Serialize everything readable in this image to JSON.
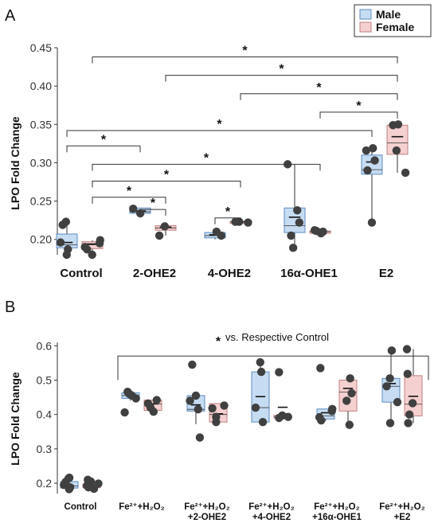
{
  "colors": {
    "male_fill": "#c6dcf2",
    "male_stroke": "#5c8cc0",
    "female_fill": "#f5d0d0",
    "female_stroke": "#c08080",
    "point": "#404040",
    "axis": "#333333"
  },
  "panels": {
    "a": {
      "label": "A"
    },
    "b": {
      "label": "B"
    }
  },
  "chart_data": [
    {
      "type": "box",
      "panel": "A",
      "ylabel": "LPO Fold Change",
      "ylim": [
        0.18,
        0.45
      ],
      "yticks": [
        "0.20",
        "0.25",
        "0.30",
        "0.35",
        "0.40",
        "0.45"
      ],
      "legend": {
        "position": "top-right",
        "entries": [
          "Male",
          "Female"
        ]
      },
      "categories": [
        "Control",
        "2-OHE2",
        "4-OHE2",
        "16α-OHE1",
        "E2"
      ],
      "series": [
        {
          "name": "Male",
          "boxes": [
            {
              "q1": 0.189,
              "median": 0.193,
              "mean": 0.196,
              "q3": 0.207,
              "whisker_low": 0.18,
              "whisker_high": 0.223,
              "points": [
                0.18,
                0.187,
                0.196,
                0.219,
                0.223
              ]
            },
            {
              "q1": 0.234,
              "median": 0.236,
              "mean": 0.237,
              "q3": 0.241,
              "whisker_low": 0.233,
              "whisker_high": 0.241,
              "points": [
                0.234,
                0.24
              ]
            },
            {
              "q1": 0.202,
              "median": 0.205,
              "mean": 0.206,
              "q3": 0.209,
              "whisker_low": 0.2,
              "whisker_high": 0.21,
              "points": [
                0.205,
                0.21
              ]
            },
            {
              "q1": 0.209,
              "median": 0.218,
              "mean": 0.229,
              "q3": 0.241,
              "whisker_low": 0.189,
              "whisker_high": 0.298,
              "points": [
                0.189,
                0.205,
                0.222,
                0.238,
                0.298
              ]
            },
            {
              "q1": 0.285,
              "median": 0.291,
              "mean": 0.301,
              "q3": 0.31,
              "whisker_low": 0.222,
              "whisker_high": 0.319,
              "points": [
                0.222,
                0.29,
                0.303,
                0.316,
                0.319
              ]
            }
          ]
        },
        {
          "name": "Female",
          "boxes": [
            {
              "q1": 0.188,
              "median": 0.193,
              "mean": 0.194,
              "q3": 0.197,
              "whisker_low": 0.18,
              "whisker_high": 0.199,
              "points": [
                0.18,
                0.187,
                0.19,
                0.195,
                0.199
              ]
            },
            {
              "q1": 0.212,
              "median": 0.215,
              "mean": 0.216,
              "q3": 0.218,
              "whisker_low": 0.205,
              "whisker_high": 0.219,
              "points": [
                0.205,
                0.217
              ]
            },
            {
              "q1": 0.223,
              "median": 0.223,
              "mean": 0.223,
              "q3": 0.223,
              "whisker_low": 0.222,
              "whisker_high": 0.223,
              "points": [
                0.222,
                0.223,
                0.223
              ]
            },
            {
              "q1": 0.208,
              "median": 0.21,
              "mean": 0.21,
              "q3": 0.211,
              "whisker_low": 0.208,
              "whisker_high": 0.212,
              "points": [
                0.208,
                0.21,
                0.211,
                0.212
              ]
            },
            {
              "q1": 0.311,
              "median": 0.326,
              "mean": 0.334,
              "q3": 0.349,
              "whisker_low": 0.287,
              "whisker_high": 0.35,
              "points": [
                0.287,
                0.316,
                0.349,
                0.35
              ]
            }
          ]
        }
      ],
      "annotations": {
        "star": "*",
        "brackets": [
          {
            "from": [
              0,
              "center"
            ],
            "to": [
              4,
              "center"
            ],
            "y": 0.438
          },
          {
            "from": [
              1,
              "center"
            ],
            "to": [
              4,
              "center"
            ],
            "y": 0.414
          },
          {
            "from": [
              2,
              "center"
            ],
            "to": [
              4,
              "center"
            ],
            "y": 0.39
          },
          {
            "from": [
              3,
              "center"
            ],
            "to": [
              4,
              "center"
            ],
            "y": 0.366
          },
          {
            "from": [
              0,
              "male"
            ],
            "to": [
              4,
              "male"
            ],
            "y": 0.342
          },
          {
            "from": [
              0,
              "male"
            ],
            "to": [
              1,
              "male"
            ],
            "y": 0.322
          },
          {
            "from": [
              0,
              "female"
            ],
            "to": [
              3,
              "female"
            ],
            "y": 0.298
          },
          {
            "from": [
              0,
              "female"
            ],
            "to": [
              2,
              "female"
            ],
            "y": 0.276
          },
          {
            "from": [
              0,
              "female"
            ],
            "to": [
              1,
              "female"
            ],
            "y": 0.255
          },
          {
            "from": [
              1,
              "male"
            ],
            "to": [
              1,
              "female"
            ],
            "y": 0.239
          },
          {
            "from": [
              2,
              "male"
            ],
            "to": [
              2,
              "female"
            ],
            "y": 0.228
          }
        ]
      }
    },
    {
      "type": "box",
      "panel": "B",
      "ylabel": "LPO Fold Change",
      "ylim": [
        0.17,
        0.61
      ],
      "yticks": [
        "0.2",
        "0.3",
        "0.4",
        "0.5",
        "0.6"
      ],
      "categories": [
        {
          "lines": [
            "Control"
          ]
        },
        {
          "lines": [
            "Fe²⁺+H₂O₂"
          ]
        },
        {
          "lines": [
            "Fe²⁺+H₂O₂",
            "+2-OHE2"
          ]
        },
        {
          "lines": [
            "Fe²⁺+H₂O₂",
            "+4-OHE2"
          ]
        },
        {
          "lines": [
            "Fe²⁺+H₂O₂",
            "+16α-OHE1"
          ]
        },
        {
          "lines": [
            "Fe²⁺+H₂O₂",
            "+E2"
          ]
        }
      ],
      "series": [
        {
          "name": "Male",
          "boxes": [
            {
              "q1": 0.186,
              "median": 0.192,
              "mean": 0.193,
              "q3": 0.205,
              "whisker_low": 0.181,
              "whisker_high": 0.216,
              "points": [
                0.183,
                0.188,
                0.195,
                0.204,
                0.214,
                0.216
              ]
            },
            {
              "q1": 0.447,
              "median": 0.455,
              "mean": 0.457,
              "q3": 0.463,
              "whisker_low": 0.44,
              "whisker_high": 0.466,
              "points": [
                0.406,
                0.447,
                0.455,
                0.46,
                0.466
              ]
            },
            {
              "q1": 0.41,
              "median": 0.415,
              "mean": 0.428,
              "q3": 0.455,
              "whisker_low": 0.372,
              "whisker_high": 0.46,
              "points": [
                0.333,
                0.415,
                0.44,
                0.455,
                0.545
              ]
            },
            {
              "q1": 0.378,
              "median": 0.42,
              "mean": 0.452,
              "q3": 0.524,
              "whisker_low": 0.378,
              "whisker_high": 0.552,
              "points": [
                0.378,
                0.42,
                0.524,
                0.552
              ]
            },
            {
              "q1": 0.387,
              "median": 0.396,
              "mean": 0.405,
              "q3": 0.416,
              "whisker_low": 0.382,
              "whisker_high": 0.416,
              "points": [
                0.383,
                0.392,
                0.41,
                0.416,
                0.535
              ]
            },
            {
              "q1": 0.436,
              "median": 0.482,
              "mean": 0.49,
              "q3": 0.505,
              "whisker_low": 0.375,
              "whisker_high": 0.586,
              "points": [
                0.375,
                0.436,
                0.482,
                0.505,
                0.586
              ]
            }
          ]
        },
        {
          "name": "Female",
          "boxes": [
            {
              "q1": 0.187,
              "median": 0.192,
              "mean": 0.193,
              "q3": 0.197,
              "whisker_low": 0.183,
              "whisker_high": 0.21,
              "points": [
                0.184,
                0.188,
                0.193,
                0.199,
                0.205,
                0.21
              ]
            },
            {
              "q1": 0.412,
              "median": 0.43,
              "mean": 0.431,
              "q3": 0.442,
              "whisker_low": 0.408,
              "whisker_high": 0.442,
              "points": [
                0.408,
                0.42,
                0.432,
                0.442
              ]
            },
            {
              "q1": 0.378,
              "median": 0.4,
              "mean": 0.402,
              "q3": 0.432,
              "whisker_low": 0.378,
              "whisker_high": 0.432,
              "points": [
                0.378,
                0.393,
                0.418,
                0.426
              ]
            },
            {
              "q1": 0.39,
              "median": 0.393,
              "mean": 0.421,
              "q3": 0.398,
              "whisker_low": 0.388,
              "whisker_high": 0.398,
              "points": [
                0.39,
                0.393,
                0.397,
                0.523
              ]
            },
            {
              "q1": 0.41,
              "median": 0.465,
              "mean": 0.476,
              "q3": 0.5,
              "whisker_low": 0.37,
              "whisker_high": 0.505,
              "points": [
                0.37,
                0.44,
                0.462,
                0.505
              ]
            },
            {
              "q1": 0.396,
              "median": 0.43,
              "mean": 0.453,
              "q3": 0.513,
              "whisker_low": 0.375,
              "whisker_high": 0.59,
              "points": [
                0.375,
                0.4,
                0.433,
                0.518,
                0.59
              ]
            }
          ]
        }
      ],
      "annotations": {
        "bracket": {
          "from": 1,
          "to": 5,
          "y": 0.57
        },
        "star": "*",
        "note": "vs. Respective Control"
      }
    }
  ]
}
